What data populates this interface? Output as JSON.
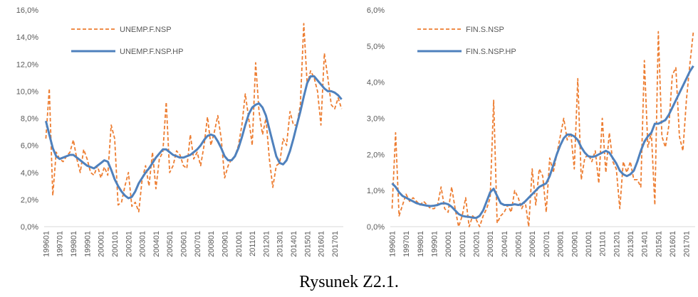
{
  "chart_data": [
    {
      "type": "line",
      "categories": [
        "199601",
        null,
        null,
        null,
        "199701",
        null,
        null,
        null,
        "199801",
        null,
        null,
        null,
        "199901",
        null,
        null,
        null,
        "200001",
        null,
        null,
        null,
        "200101",
        null,
        null,
        null,
        "200201",
        null,
        null,
        null,
        "200301",
        null,
        null,
        null,
        "200401",
        null,
        null,
        null,
        "200501",
        null,
        null,
        null,
        "200601",
        null,
        null,
        null,
        "200701",
        null,
        null,
        null,
        "200801",
        null,
        null,
        null,
        "200901",
        null,
        null,
        null,
        "201001",
        null,
        null,
        null,
        "201101",
        null,
        null,
        null,
        "201201",
        null,
        null,
        null,
        "201301",
        null,
        null,
        null,
        "201401",
        null,
        null,
        null,
        "201501",
        null,
        null,
        null,
        "201601",
        null,
        null,
        null,
        "201701",
        null,
        null
      ],
      "series": [
        {
          "name": "UNEMP.F.NSP",
          "color": "#ed7d31",
          "line_style": "dashed",
          "values": [
            6.5,
            10.2,
            2.3,
            5.5,
            5.0,
            4.8,
            5.2,
            5.5,
            6.4,
            5.0,
            4.0,
            5.7,
            5.0,
            4.0,
            3.8,
            4.5,
            3.6,
            4.4,
            3.8,
            7.5,
            6.5,
            1.6,
            1.8,
            3.0,
            4.0,
            1.5,
            1.8,
            1.1,
            3.5,
            4.5,
            3.0,
            5.5,
            2.8,
            5.0,
            5.5,
            9.2,
            4.0,
            4.5,
            5.6,
            5.3,
            4.5,
            4.3,
            6.8,
            5.0,
            5.5,
            4.5,
            6.0,
            8.1,
            6.0,
            7.0,
            8.2,
            6.5,
            3.6,
            4.5,
            5.0,
            5.2,
            6.0,
            7.5,
            9.8,
            8.0,
            6.0,
            12.1,
            8.5,
            6.8,
            8.0,
            5.0,
            2.9,
            4.5,
            4.7,
            6.5,
            6.0,
            8.5,
            7.5,
            7.5,
            9.0,
            15.0,
            10.5,
            11.5,
            11.0,
            10.0,
            7.5,
            12.8,
            11.0,
            9.0,
            8.7,
            9.5,
            8.7
          ]
        },
        {
          "name": "UNEMP.F.NSP.HP",
          "color": "#4f81bd",
          "line_style": "solid",
          "values": [
            7.8,
            6.8,
            5.8,
            5.2,
            5.0,
            5.1,
            5.2,
            5.3,
            5.3,
            5.1,
            4.9,
            4.7,
            4.5,
            4.4,
            4.3,
            4.5,
            4.7,
            4.9,
            4.8,
            4.2,
            3.5,
            3.0,
            2.6,
            2.3,
            2.1,
            2.2,
            2.6,
            3.2,
            3.6,
            4.0,
            4.3,
            4.7,
            5.1,
            5.4,
            5.7,
            5.7,
            5.5,
            5.3,
            5.2,
            5.1,
            5.1,
            5.2,
            5.3,
            5.5,
            5.7,
            6.0,
            6.4,
            6.7,
            6.8,
            6.7,
            6.3,
            5.8,
            5.2,
            4.9,
            4.9,
            5.2,
            5.8,
            6.6,
            7.5,
            8.3,
            8.8,
            9.0,
            9.1,
            8.8,
            8.2,
            7.2,
            6.2,
            5.2,
            4.7,
            4.6,
            4.9,
            5.6,
            6.5,
            7.5,
            8.5,
            9.6,
            10.6,
            11.1,
            11.1,
            10.8,
            10.5,
            10.2,
            10.0,
            10.0,
            9.9,
            9.7,
            9.4
          ]
        }
      ],
      "ylim": [
        0,
        16
      ],
      "yticks": [
        {
          "value": 0,
          "label": "0,0%"
        },
        {
          "value": 2,
          "label": "2,0%"
        },
        {
          "value": 4,
          "label": "4,0%"
        },
        {
          "value": 6,
          "label": "6,0%"
        },
        {
          "value": 8,
          "label": "8,0%"
        },
        {
          "value": 10,
          "label": "10,0%"
        },
        {
          "value": 12,
          "label": "12,0%"
        },
        {
          "value": 14,
          "label": "14,0%"
        },
        {
          "value": 16,
          "label": "16,0%"
        }
      ],
      "grid": false,
      "legend": "upper left"
    },
    {
      "type": "line",
      "categories": [
        "199601",
        null,
        null,
        null,
        "199701",
        null,
        null,
        null,
        "199801",
        null,
        null,
        null,
        "199901",
        null,
        null,
        null,
        "200001",
        null,
        null,
        null,
        "200101",
        null,
        null,
        null,
        "200201",
        null,
        null,
        null,
        "200301",
        null,
        null,
        null,
        "200401",
        null,
        null,
        null,
        "200501",
        null,
        null,
        null,
        "200601",
        null,
        null,
        null,
        "200701",
        null,
        null,
        null,
        "200801",
        null,
        null,
        null,
        "200901",
        null,
        null,
        null,
        "201001",
        null,
        null,
        null,
        "201101",
        null,
        null,
        null,
        "201201",
        null,
        null,
        null,
        "201301",
        null,
        null,
        null,
        "201401",
        null,
        null,
        null,
        "201501",
        null,
        null,
        null,
        "201601",
        null,
        null,
        null,
        "201701",
        null,
        null
      ],
      "series": [
        {
          "name": "FIN.S.NSP",
          "color": "#ed7d31",
          "line_style": "dashed",
          "values": [
            0.5,
            2.6,
            0.3,
            0.6,
            0.9,
            0.7,
            0.8,
            0.7,
            0.6,
            0.7,
            0.6,
            0.5,
            0.5,
            0.6,
            1.1,
            0.5,
            0.4,
            1.1,
            0.5,
            0.0,
            0.3,
            0.8,
            0.0,
            0.3,
            0.2,
            0.0,
            0.3,
            0.5,
            0.8,
            3.5,
            0.1,
            0.3,
            0.4,
            0.6,
            0.4,
            1.0,
            0.8,
            0.5,
            0.7,
            0.0,
            1.6,
            0.6,
            1.6,
            1.4,
            0.4,
            1.9,
            1.5,
            2.0,
            2.5,
            3.0,
            2.4,
            2.6,
            1.6,
            4.1,
            1.3,
            1.9,
            2.0,
            1.8,
            2.1,
            1.2,
            3.0,
            1.5,
            2.6,
            1.8,
            1.6,
            0.5,
            1.8,
            1.5,
            1.8,
            1.3,
            1.3,
            1.1,
            4.6,
            2.2,
            2.6,
            0.6,
            5.4,
            2.5,
            2.2,
            2.8,
            4.2,
            4.4,
            2.5,
            2.1,
            3.5,
            4.5,
            5.4
          ]
        },
        {
          "name": "FIN.S.NSP.HP",
          "color": "#4f81bd",
          "line_style": "solid",
          "values": [
            1.2,
            1.1,
            0.95,
            0.85,
            0.8,
            0.75,
            0.7,
            0.65,
            0.62,
            0.6,
            0.58,
            0.57,
            0.58,
            0.6,
            0.64,
            0.65,
            0.62,
            0.55,
            0.45,
            0.35,
            0.3,
            0.28,
            0.27,
            0.25,
            0.24,
            0.3,
            0.45,
            0.7,
            0.95,
            1.05,
            0.85,
            0.65,
            0.6,
            0.6,
            0.6,
            0.62,
            0.6,
            0.62,
            0.7,
            0.8,
            0.9,
            1.0,
            1.1,
            1.15,
            1.2,
            1.4,
            1.7,
            2.0,
            2.25,
            2.45,
            2.55,
            2.55,
            2.5,
            2.4,
            2.2,
            2.05,
            1.95,
            1.93,
            1.95,
            2.0,
            2.05,
            2.1,
            2.05,
            1.9,
            1.75,
            1.55,
            1.45,
            1.4,
            1.45,
            1.55,
            1.8,
            2.1,
            2.35,
            2.5,
            2.6,
            2.85,
            2.85,
            2.9,
            2.95,
            3.1,
            3.3,
            3.5,
            3.7,
            3.9,
            4.1,
            4.3,
            4.45
          ]
        }
      ],
      "ylim": [
        0,
        6
      ],
      "yticks": [
        {
          "value": 0,
          "label": "0,0%"
        },
        {
          "value": 1,
          "label": "1,0%"
        },
        {
          "value": 2,
          "label": "2,0%"
        },
        {
          "value": 3,
          "label": "3,0%"
        },
        {
          "value": 4,
          "label": "4,0%"
        },
        {
          "value": 5,
          "label": "5,0%"
        },
        {
          "value": 6,
          "label": "6,0%"
        }
      ],
      "grid": false,
      "legend": "upper left"
    }
  ],
  "caption": "Rysunek Z2.1."
}
